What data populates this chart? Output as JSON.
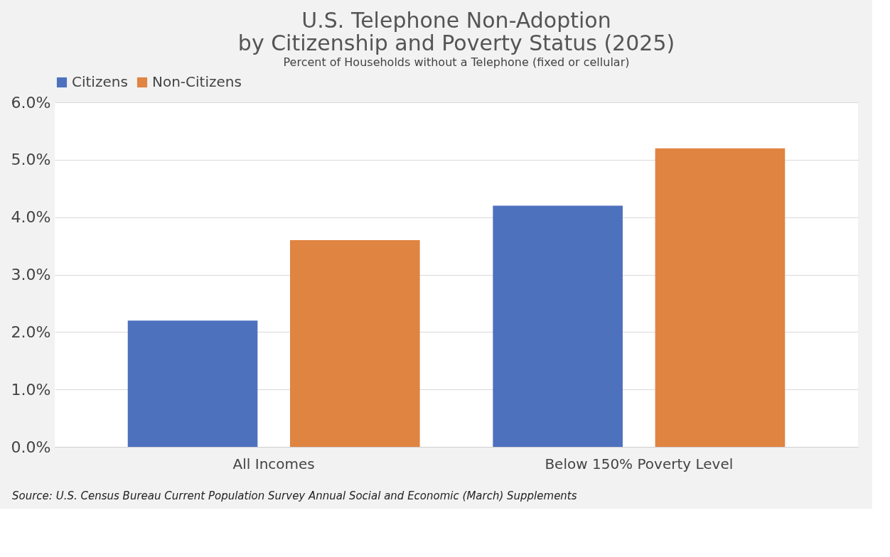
{
  "chart_data": {
    "type": "bar",
    "title": [
      "U.S. Telephone Non-Adoption",
      "by Citizenship and Poverty Status (2025)"
    ],
    "subtitle": "Percent of Households without a Telephone (fixed or cellular)",
    "categories": [
      "All Incomes",
      "Below 150% Poverty Level"
    ],
    "series": [
      {
        "name": "Citizens",
        "color": "#4e71be",
        "values": [
          2.2,
          4.2
        ]
      },
      {
        "name": "Non-Citizens",
        "color": "#e08442",
        "values": [
          3.6,
          5.2
        ]
      }
    ],
    "ylim": [
      0,
      6
    ],
    "yticks": [
      {
        "value": 0,
        "label": "0.0%"
      },
      {
        "value": 1,
        "label": "1.0%"
      },
      {
        "value": 2,
        "label": "2.0%"
      },
      {
        "value": 3,
        "label": "3.0%"
      },
      {
        "value": 4,
        "label": "4.0%"
      },
      {
        "value": 5,
        "label": "5.0%"
      },
      {
        "value": 6,
        "label": "6.0%"
      }
    ],
    "grid": "y",
    "legend": "top",
    "annotations": [
      "Source: U.S. Census Bureau Current Population Survey Annual Social and Economic (March) Supplements"
    ]
  }
}
